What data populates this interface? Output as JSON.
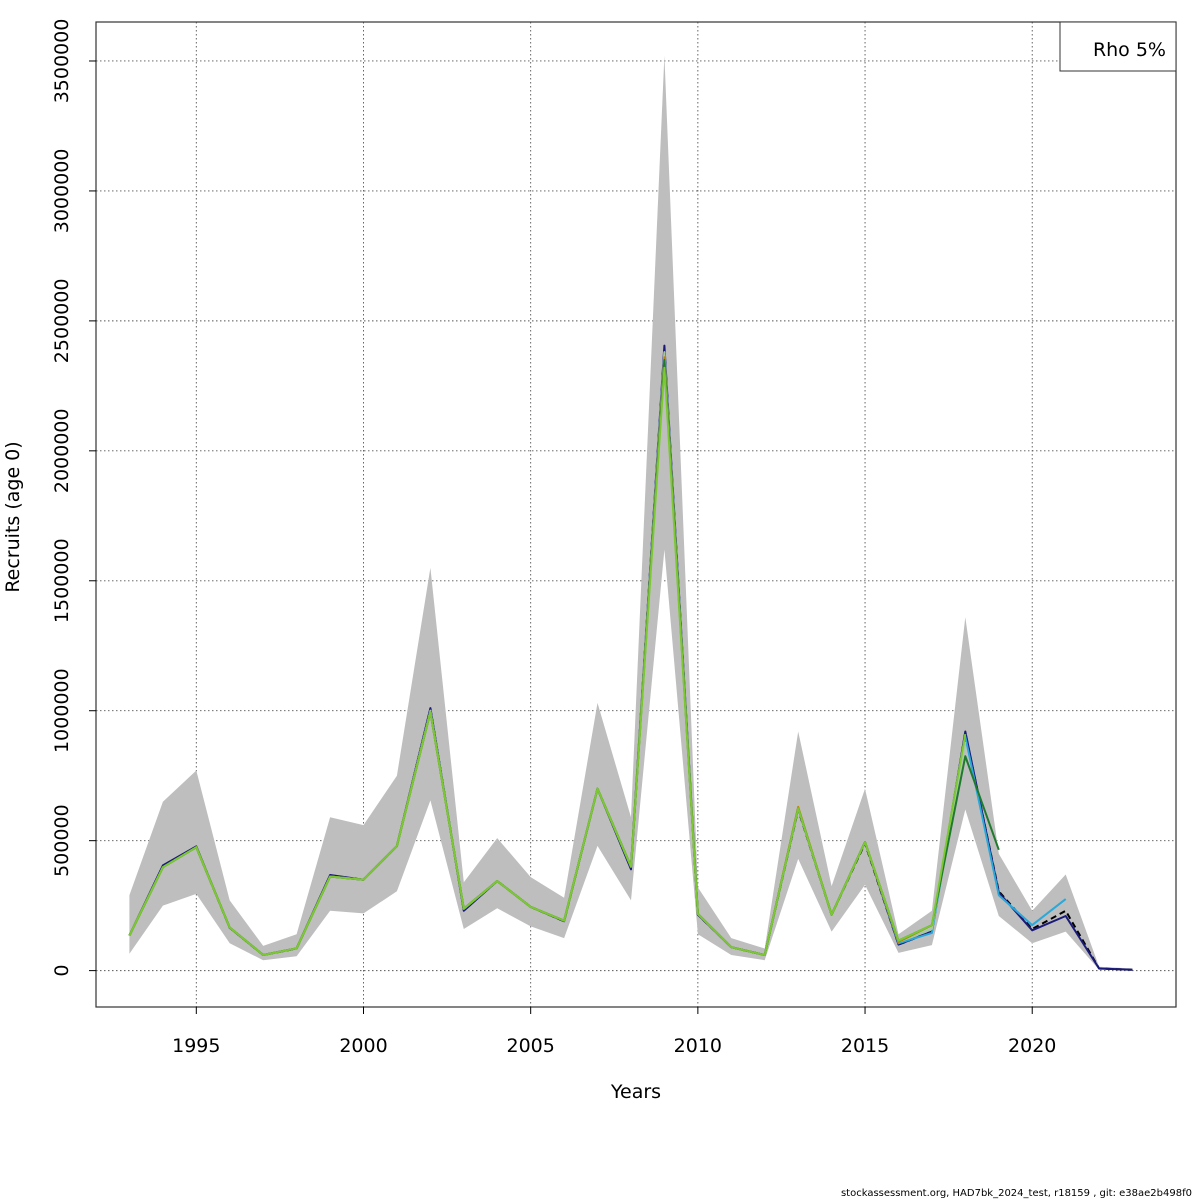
{
  "chart_data": {
    "type": "line",
    "title": "",
    "xlabel": "Years",
    "ylabel": "Recruits (age 0)",
    "xlim": [
      1992,
      2024.3
    ],
    "ylim": [
      -140000,
      3650000
    ],
    "x_ticks": [
      1995,
      2000,
      2005,
      2010,
      2015,
      2020
    ],
    "y_ticks": [
      0,
      500000,
      1000000,
      1500000,
      2000000,
      2500000,
      3000000,
      3500000
    ],
    "grid": true,
    "legend": {
      "position": "top-right",
      "label": "Rho 5%"
    },
    "band": {
      "name": "",
      "x": [
        1993,
        1994,
        1995,
        1996,
        1997,
        1998,
        1999,
        2000,
        2001,
        2002,
        2003,
        2004,
        2005,
        2006,
        2007,
        2008,
        2009,
        2010,
        2011,
        2012,
        2013,
        2014,
        2015,
        2016,
        2017,
        2018,
        2019,
        2020,
        2021,
        2022,
        2023
      ],
      "upper": [
        290000,
        650000,
        770000,
        270000,
        95000,
        140000,
        590000,
        560000,
        750000,
        1550000,
        340000,
        510000,
        360000,
        280000,
        1030000,
        590000,
        3520000,
        320000,
        125000,
        85000,
        920000,
        325000,
        700000,
        140000,
        230000,
        1360000,
        450000,
        230000,
        370000,
        15000,
        8000
      ],
      "lower": [
        65000,
        250000,
        295000,
        105000,
        40000,
        55000,
        230000,
        220000,
        305000,
        655000,
        160000,
        240000,
        170000,
        125000,
        480000,
        270000,
        1620000,
        140000,
        60000,
        40000,
        430000,
        150000,
        330000,
        68000,
        98000,
        620000,
        210000,
        105000,
        150000,
        3000,
        1000
      ]
    },
    "series": [
      {
        "name": "",
        "color": "#000000",
        "dashed": true,
        "x": [
          1993,
          1994,
          1995,
          1996,
          1997,
          1998,
          1999,
          2000,
          2001,
          2002,
          2003,
          2004,
          2005,
          2006,
          2007,
          2008,
          2009,
          2010,
          2011,
          2012,
          2013,
          2014,
          2015,
          2016,
          2017,
          2018,
          2019,
          2020,
          2021,
          2022,
          2023
        ],
        "values": [
          135000,
          400000,
          475000,
          165000,
          60000,
          85000,
          365000,
          350000,
          480000,
          1005000,
          235000,
          345000,
          245000,
          190000,
          700000,
          400000,
          2390000,
          215000,
          90000,
          60000,
          620000,
          215000,
          490000,
          100000,
          150000,
          915000,
          305000,
          160000,
          230000,
          8000,
          3000
        ]
      },
      {
        "name": "",
        "color": "#1a1a7a",
        "dashed": false,
        "x": [
          1993,
          1994,
          1995,
          1996,
          1997,
          1998,
          1999,
          2000,
          2001,
          2002,
          2003,
          2004,
          2005,
          2006,
          2007,
          2008,
          2009,
          2010,
          2011,
          2012,
          2013,
          2014,
          2015,
          2016,
          2017,
          2018,
          2019,
          2020,
          2021,
          2022,
          2023
        ],
        "values": [
          135000,
          405000,
          478000,
          165000,
          60000,
          86000,
          368000,
          350000,
          480000,
          1010000,
          230000,
          345000,
          245000,
          190000,
          700000,
          390000,
          2405000,
          215000,
          90000,
          60000,
          625000,
          215000,
          495000,
          100000,
          150000,
          920000,
          300000,
          155000,
          210000,
          8000,
          3000
        ]
      },
      {
        "name": "",
        "color": "#2aa8d8",
        "dashed": false,
        "x": [
          1993,
          1994,
          1995,
          1996,
          1997,
          1998,
          1999,
          2000,
          2001,
          2002,
          2003,
          2004,
          2005,
          2006,
          2007,
          2008,
          2009,
          2010,
          2011,
          2012,
          2013,
          2014,
          2015,
          2016,
          2017,
          2018,
          2019,
          2020,
          2021
        ],
        "values": [
          135000,
          398000,
          475000,
          166000,
          60000,
          86000,
          362000,
          350000,
          480000,
          1000000,
          238000,
          345000,
          245000,
          192000,
          700000,
          400000,
          2380000,
          218000,
          90000,
          60000,
          625000,
          215000,
          495000,
          105000,
          145000,
          900000,
          290000,
          175000,
          275000
        ]
      },
      {
        "name": "",
        "color": "#a6c8a0",
        "dashed": false,
        "x": [
          1993,
          1994,
          1995,
          1996,
          1997,
          1998,
          1999,
          2000,
          2001,
          2002,
          2003,
          2004,
          2005,
          2006,
          2007,
          2008,
          2009,
          2010,
          2011,
          2012,
          2013,
          2014,
          2015,
          2016,
          2017,
          2018
        ],
        "values": [
          135000,
          398000,
          475000,
          166000,
          60000,
          86000,
          362000,
          350000,
          480000,
          1000000,
          238000,
          345000,
          245000,
          192000,
          700000,
          400000,
          2380000,
          218000,
          90000,
          60000,
          625000,
          215000,
          495000,
          110000,
          160000,
          880000
        ]
      },
      {
        "name": "",
        "color": "#b8860b",
        "dashed": false,
        "x": [
          1993,
          1994,
          1995,
          1996,
          1997,
          1998,
          1999,
          2000,
          2001,
          2002,
          2003,
          2004,
          2005,
          2006,
          2007,
          2008,
          2009,
          2010,
          2011,
          2012,
          2013,
          2014,
          2015,
          2016,
          2017
        ],
        "values": [
          135000,
          398000,
          475000,
          166000,
          60000,
          86000,
          362000,
          350000,
          480000,
          995000,
          238000,
          345000,
          245000,
          192000,
          700000,
          400000,
          2360000,
          218000,
          90000,
          60000,
          630000,
          215000,
          495000,
          110000,
          175000
        ]
      },
      {
        "name": "",
        "color": "#1f7a2e",
        "dashed": false,
        "x": [
          1993,
          1994,
          1995,
          1996,
          1997,
          1998,
          1999,
          2000,
          2001,
          2002,
          2003,
          2004,
          2005,
          2006,
          2007,
          2008,
          2009,
          2010,
          2011,
          2012,
          2013,
          2014,
          2015,
          2016,
          2017,
          2018,
          2019
        ],
        "values": [
          135000,
          398000,
          475000,
          166000,
          60000,
          86000,
          362000,
          350000,
          480000,
          995000,
          238000,
          345000,
          245000,
          192000,
          700000,
          400000,
          2350000,
          218000,
          90000,
          60000,
          625000,
          215000,
          495000,
          115000,
          175000,
          825000,
          465000
        ]
      },
      {
        "name": "",
        "color": "#7cc832",
        "dashed": false,
        "x": [
          1993,
          1994,
          1995,
          1996,
          1997,
          1998,
          1999,
          2000,
          2001,
          2002,
          2003,
          2004,
          2005,
          2006,
          2007,
          2008,
          2009,
          2010,
          2011,
          2012,
          2013,
          2014,
          2015,
          2016,
          2017,
          2018
        ],
        "values": [
          135000,
          398000,
          475000,
          166000,
          60000,
          86000,
          362000,
          350000,
          480000,
          995000,
          238000,
          345000,
          245000,
          192000,
          700000,
          400000,
          2320000,
          218000,
          90000,
          60000,
          625000,
          215000,
          495000,
          115000,
          175000,
          910000
        ]
      }
    ]
  },
  "footer": "stockassessment.org, HAD7bk_2024_test, r18159 , git: e38ae2b498f0"
}
